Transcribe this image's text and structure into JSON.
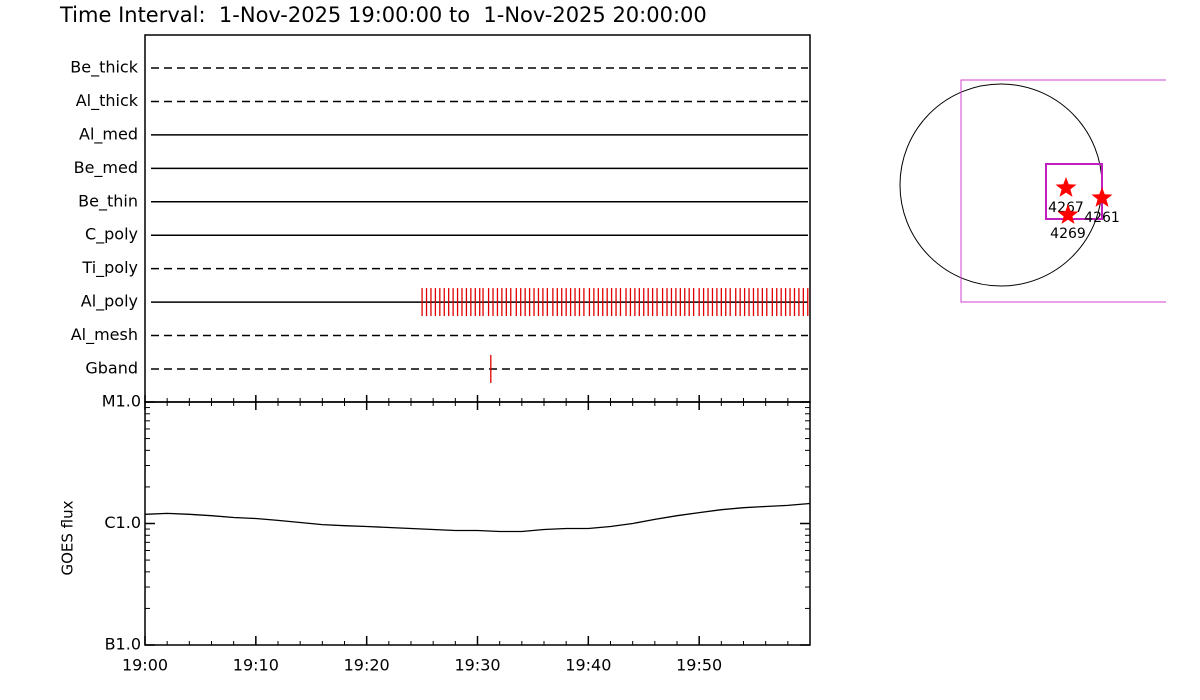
{
  "title": "Time Interval:  1-Nov-2025 19:00:00 to  1-Nov-2025 20:00:00",
  "chart_data": [
    {
      "type": "timeline",
      "xlim": [
        0,
        60
      ],
      "series": [
        {
          "name": "Be_thick",
          "dashed": true,
          "color": "#e00000",
          "x": []
        },
        {
          "name": "Al_thick",
          "dashed": true,
          "color": "#e00000",
          "x": []
        },
        {
          "name": "Al_med",
          "dashed": false,
          "color": "#e00000",
          "x": []
        },
        {
          "name": "Be_med",
          "dashed": false,
          "color": "#e00000",
          "x": []
        },
        {
          "name": "Be_thin",
          "dashed": false,
          "color": "#e00000",
          "x": []
        },
        {
          "name": "C_poly",
          "dashed": false,
          "color": "#e00000",
          "x": []
        },
        {
          "name": "Ti_poly",
          "dashed": true,
          "color": "#e00000",
          "x": []
        },
        {
          "name": "Al_poly",
          "dashed": false,
          "color": "#e00000",
          "x": [
            25.0,
            25.4,
            25.8,
            26.2,
            26.6,
            27.0,
            27.4,
            27.8,
            28.2,
            28.6,
            29.0,
            29.4,
            29.8,
            30.2,
            30.5,
            31.0,
            31.4,
            31.8,
            32.2,
            32.6,
            33.0,
            33.5,
            33.9,
            34.3,
            34.7,
            35.1,
            35.5,
            35.9,
            36.3,
            36.8,
            37.2,
            37.6,
            38.0,
            38.4,
            38.8,
            39.2,
            39.6,
            40.1,
            40.5,
            40.9,
            41.3,
            41.7,
            42.1,
            42.5,
            42.9,
            43.4,
            43.8,
            44.2,
            44.6,
            45.0,
            45.4,
            45.8,
            46.2,
            46.7,
            47.1,
            47.5,
            47.9,
            48.3,
            48.7,
            49.1,
            49.5,
            50.0,
            50.4,
            50.8,
            51.2,
            51.6,
            52.0,
            52.4,
            52.8,
            53.3,
            53.7,
            54.1,
            54.5,
            54.9,
            55.3,
            55.7,
            56.1,
            56.6,
            57.0,
            57.4,
            57.8,
            58.2,
            58.6,
            59.0,
            59.4,
            59.8
          ]
        },
        {
          "name": "Al_mesh",
          "dashed": true,
          "color": "#e00000",
          "x": []
        },
        {
          "name": "Gband",
          "dashed": true,
          "color": "#e00000",
          "x": [
            31.2
          ]
        }
      ]
    },
    {
      "type": "line",
      "ylabel": "GOES flux",
      "log_y": true,
      "color": "#000000",
      "x": [
        0,
        2,
        4,
        6,
        8,
        10,
        12,
        14,
        16,
        18,
        20,
        22,
        24,
        26,
        28,
        30,
        32,
        34,
        36,
        38,
        40,
        42,
        44,
        46,
        48,
        50,
        52,
        54,
        56,
        58,
        60
      ],
      "values": [
        1.19e-06,
        1.21e-06,
        1.19e-06,
        1.16e-06,
        1.12e-06,
        1.1e-06,
        1.06e-06,
        1.02e-06,
        9.8e-07,
        9.6e-07,
        9.45e-07,
        9.27e-07,
        9.1e-07,
        8.93e-07,
        8.76e-07,
        8.76e-07,
        8.6e-07,
        8.6e-07,
        8.93e-07,
        9.1e-07,
        9.1e-07,
        9.45e-07,
        1e-06,
        1.08e-06,
        1.16e-06,
        1.23e-06,
        1.3e-06,
        1.35e-06,
        1.38e-06,
        1.41e-06,
        1.46e-06
      ],
      "xlim": [
        0,
        60
      ],
      "xticks": [
        {
          "value": 0,
          "label": "19:00"
        },
        {
          "value": 10,
          "label": "19:10"
        },
        {
          "value": 20,
          "label": "19:20"
        },
        {
          "value": 30,
          "label": "19:30"
        },
        {
          "value": 40,
          "label": "19:40"
        },
        {
          "value": 50,
          "label": "19:50"
        }
      ],
      "ylim": [
        1e-07,
        1e-05
      ],
      "yticks": [
        {
          "value": 1e-07,
          "label": "B1.0"
        },
        {
          "value": 1e-06,
          "label": "C1.0"
        },
        {
          "value": 1e-05,
          "label": "M1.0"
        }
      ]
    }
  ],
  "sun_map": {
    "regions": [
      {
        "label": "4267"
      },
      {
        "label": "4261"
      },
      {
        "label": "4269"
      }
    ]
  }
}
